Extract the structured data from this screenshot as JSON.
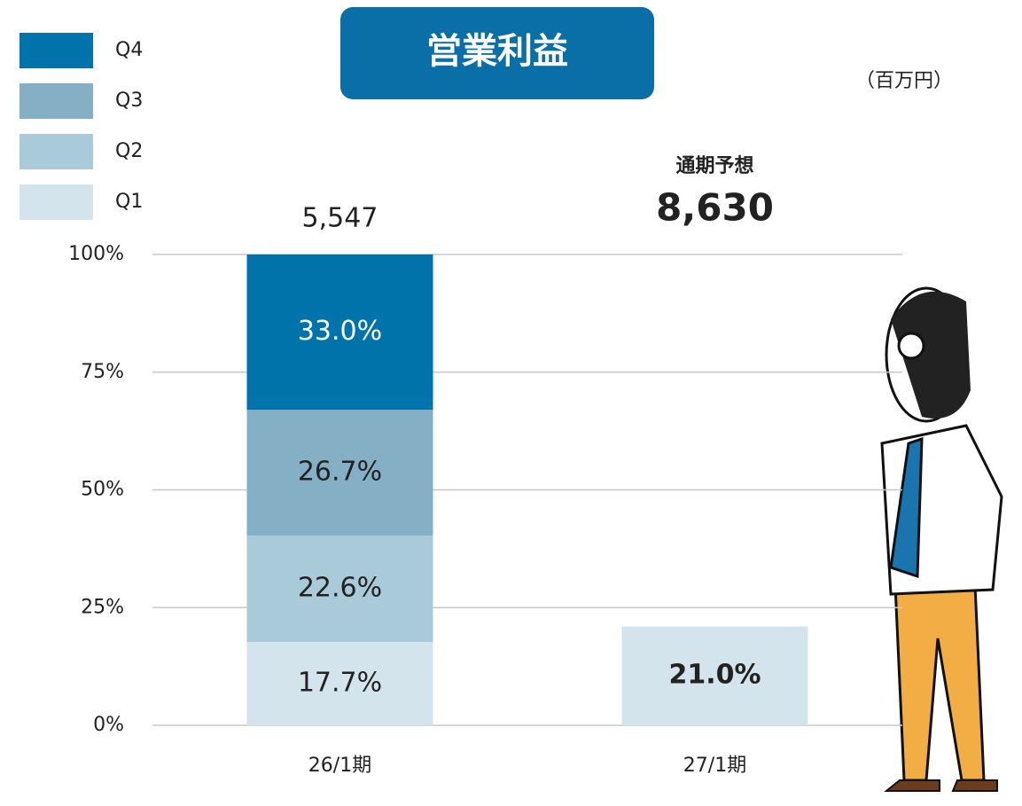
{
  "chart_data": {
    "type": "stacked_bar_percent",
    "title": "営業利益",
    "unit": "（百万円）",
    "categories": [
      "26/1期",
      "27/1期"
    ],
    "series": [
      {
        "name": "Q1",
        "color": "#d4e4ec",
        "values": [
          17.7,
          21.0
        ],
        "value_labels": [
          "17.7%",
          "21.0%"
        ]
      },
      {
        "name": "Q2",
        "color": "#a9cad8",
        "values": [
          22.6,
          null
        ],
        "value_labels": [
          "22.6%",
          null
        ]
      },
      {
        "name": "Q3",
        "color": "#84afc4",
        "values": [
          26.7,
          null
        ],
        "value_labels": [
          "26.7%",
          null
        ]
      },
      {
        "name": "Q4",
        "color": "#0073ab",
        "values": [
          33.0,
          null
        ],
        "value_labels": [
          "33.0%",
          null
        ]
      }
    ],
    "totals": [
      {
        "value": 5547,
        "label": "5,547"
      },
      {
        "value": 8630,
        "label": "8,630"
      }
    ],
    "forecast_label": "通期予想",
    "ylim": [
      0,
      100
    ],
    "yticks": [
      {
        "value": 0,
        "label": "0%"
      },
      {
        "value": 25,
        "label": "25%"
      },
      {
        "value": 50,
        "label": "50%"
      },
      {
        "value": 75,
        "label": "75%"
      },
      {
        "value": 100,
        "label": "100%"
      }
    ],
    "grid": true
  }
}
